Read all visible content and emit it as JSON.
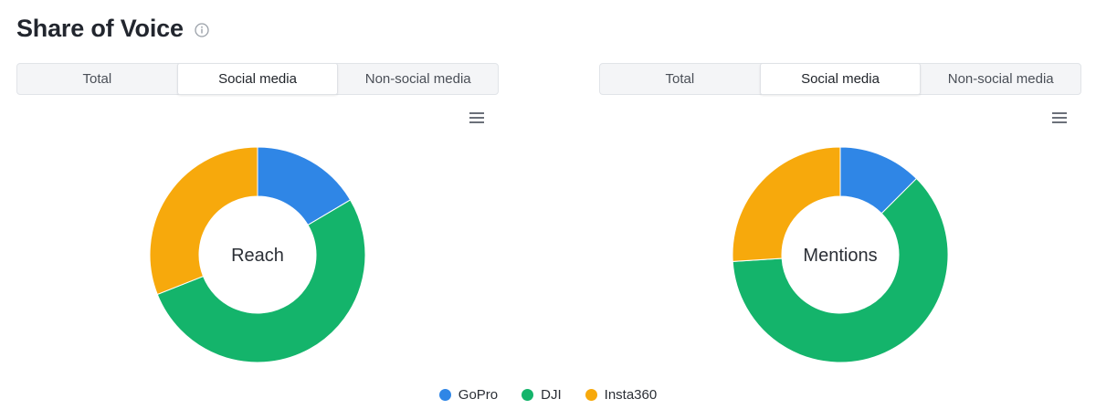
{
  "header": {
    "title": "Share of Voice",
    "info_icon": "info-circle-icon"
  },
  "tabs": [
    "Total",
    "Social media",
    "Non-social media"
  ],
  "active_tab": 1,
  "menu_icon": "hamburger-menu-icon",
  "colors": {
    "GoPro": "#2f86e6",
    "DJI": "#14b46b",
    "Insta360": "#f7a90c"
  },
  "legend": [
    {
      "label": "GoPro",
      "color": "#2f86e6"
    },
    {
      "label": "DJI",
      "color": "#14b46b"
    },
    {
      "label": "Insta360",
      "color": "#f7a90c"
    }
  ],
  "chart_data": [
    {
      "type": "pie",
      "center_label": "Reach",
      "labels": [
        "GoPro",
        "DJI",
        "Insta360"
      ],
      "values": [
        16.5,
        52.5,
        31.0
      ],
      "colors": [
        "#2f86e6",
        "#14b46b",
        "#f7a90c"
      ],
      "legend_position": "bottom"
    },
    {
      "type": "pie",
      "center_label": "Mentions",
      "labels": [
        "GoPro",
        "DJI",
        "Insta360"
      ],
      "values": [
        12.5,
        61.5,
        26.0
      ],
      "colors": [
        "#2f86e6",
        "#14b46b",
        "#f7a90c"
      ],
      "legend_position": "bottom"
    }
  ]
}
